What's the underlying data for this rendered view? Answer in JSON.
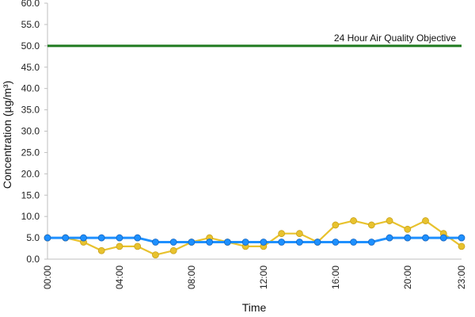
{
  "chart_data": {
    "type": "line",
    "xlabel": "Time",
    "ylabel": "Concentration (µg/m³)",
    "ylim": [
      0,
      60
    ],
    "yticks": [
      "0.0",
      "5.0",
      "10.0",
      "15.0",
      "20.0",
      "25.0",
      "30.0",
      "35.0",
      "40.0",
      "45.0",
      "50.0",
      "55.0",
      "60.0"
    ],
    "xticks": [
      "00:00",
      "04:00",
      "08:00",
      "12:00",
      "16:00",
      "20:00",
      "23:00"
    ],
    "xtick_hours": [
      0,
      4,
      8,
      12,
      16,
      20,
      23
    ],
    "hours": [
      0,
      1,
      2,
      3,
      4,
      5,
      6,
      7,
      8,
      9,
      10,
      11,
      12,
      13,
      14,
      15,
      16,
      17,
      18,
      19,
      20,
      21,
      22,
      23
    ],
    "grid": false,
    "legend": "none",
    "series": [
      {
        "color": "#1E90FF",
        "values": [
          5,
          5,
          5,
          5,
          5,
          5,
          4,
          4,
          4,
          4,
          4,
          4,
          4,
          4,
          4,
          4,
          4,
          4,
          4,
          5,
          5,
          5,
          5,
          5
        ]
      },
      {
        "color": "#E8C22E",
        "values": [
          5,
          5,
          4,
          2,
          3,
          3,
          1,
          2,
          4,
          5,
          4,
          3,
          3,
          6,
          6,
          4,
          8,
          9,
          8,
          9,
          7,
          9,
          6,
          3
        ]
      }
    ],
    "objective": {
      "value": 50,
      "label": "24 Hour Air Quality Objective",
      "color": "#1F7A1F"
    }
  }
}
